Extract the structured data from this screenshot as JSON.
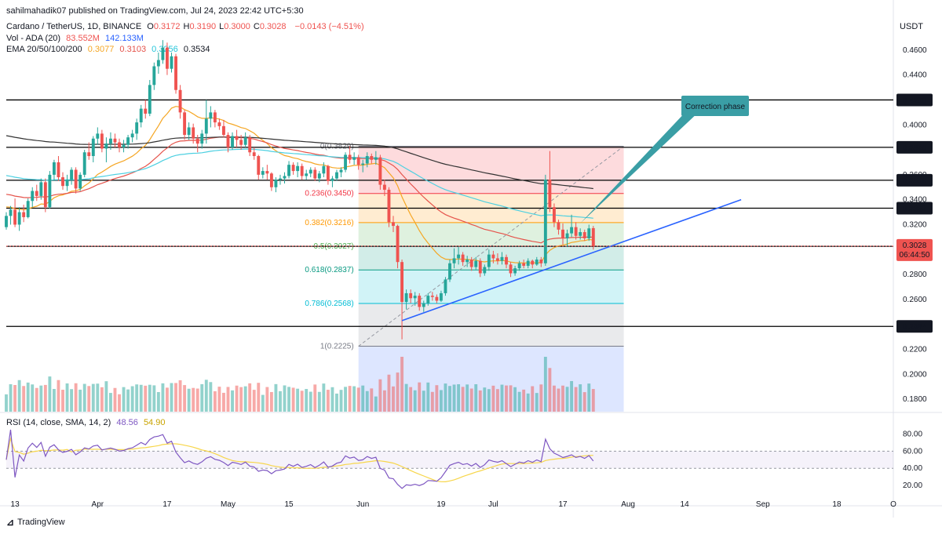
{
  "publisher": "sahilmahadik07 published on TradingView.com, Jul 24, 2023 22:42 UTC+5:30",
  "header": {
    "symbol": "Cardano / TetherUS, 1D, BINANCE",
    "ohlc": [
      {
        "k": "O",
        "v": "0.3172"
      },
      {
        "k": "H",
        "v": "0.3190"
      },
      {
        "k": "L",
        "v": "0.3000"
      },
      {
        "k": "C",
        "v": "0.3028"
      }
    ],
    "change": "−0.0143 (−4.51%)",
    "vol_label": "Vol - ADA (20)",
    "vol_values": [
      "83.552M",
      "142.133M"
    ],
    "ema_label": "EMA 20/50/100/200",
    "ema_values": [
      "0.3077",
      "0.3103",
      "0.3256",
      "0.3534"
    ],
    "rsi_label": "RSI (14, close, SMA, 14, 2)",
    "rsi_values": [
      "48.56",
      "54.90"
    ]
  },
  "currency": "USDT",
  "brand": "TradingView",
  "colors": {
    "up": "#26a69a",
    "down": "#ef5350",
    "ema20": "#f5a623",
    "ema50": "#e5534b",
    "ema100": "#4dd0e1",
    "ema200": "#333333",
    "trend": "#2962ff",
    "callout": "#3a9ea5",
    "rsi": "#7e57c2",
    "rsi_ma": "#f7d64a"
  },
  "chart_data": {
    "type": "candlestick",
    "y_ticks": [
      "0.4600",
      "0.4400",
      "0.4000",
      "0.3600",
      "0.3400",
      "0.3200",
      "0.2800",
      "0.2600",
      "0.2200",
      "0.2000",
      "0.1800"
    ],
    "ylim": [
      0.17,
      0.475
    ],
    "x_ticks": [
      "13",
      "Apr",
      "17",
      "May",
      "15",
      "Jun",
      "19",
      "Jul",
      "17",
      "Aug",
      "14",
      "Sep",
      "18",
      "O"
    ],
    "x_tick_dates": [
      "2023-03-13",
      "2023-04-01",
      "2023-04-17",
      "2023-05-01",
      "2023-05-15",
      "2023-06-01",
      "2023-06-19",
      "2023-07-01",
      "2023-07-17",
      "2023-08-01",
      "2023-08-14",
      "2023-09-01",
      "2023-09-18",
      "2023-10-01"
    ],
    "horizontal_levels": [
      {
        "value": 0.42,
        "label": "0.4200"
      },
      {
        "value": 0.382,
        "label": "0.3820"
      },
      {
        "value": 0.3556,
        "label": "0.3556"
      },
      {
        "value": 0.3332,
        "label": "0.3332"
      },
      {
        "value": 0.3026,
        "label": "0.3026"
      },
      {
        "value": 0.2384,
        "label": "0.2384"
      }
    ],
    "last_price": {
      "value": "0.3028",
      "countdown": "06:44:50"
    },
    "fib_levels": [
      {
        "ratio": "0",
        "value": 0.3829,
        "label": "0(0.3829)",
        "color": "#787b86"
      },
      {
        "ratio": "0.236",
        "value": 0.345,
        "label": "0.236(0.3450)",
        "color": "#f23645"
      },
      {
        "ratio": "0.382",
        "value": 0.3216,
        "label": "0.382(0.3216)",
        "color": "#ff9800"
      },
      {
        "ratio": "0.5",
        "value": 0.3027,
        "label": "0.5(0.3027)",
        "color": "#4caf50"
      },
      {
        "ratio": "0.618",
        "value": 0.2837,
        "label": "0.618(0.2837)",
        "color": "#089981"
      },
      {
        "ratio": "0.786",
        "value": 0.2568,
        "label": "0.786(0.2568)",
        "color": "#00bcd4"
      },
      {
        "ratio": "1",
        "value": 0.2225,
        "label": "1(0.2225)",
        "color": "#787b86"
      }
    ],
    "fib_range_dates": [
      "2023-05-31",
      "2023-07-31"
    ],
    "trendline": {
      "from": [
        "2023-06-10",
        0.243
      ],
      "to": [
        "2023-08-27",
        0.34
      ]
    },
    "callout": {
      "text": "Correction phase",
      "date": "2023-07-21",
      "value": 0.321
    },
    "candles": [
      [
        "2023-03-11",
        0.318,
        0.33,
        0.316,
        0.327
      ],
      [
        "2023-03-12",
        0.327,
        0.335,
        0.32,
        0.332
      ],
      [
        "2023-03-13",
        0.332,
        0.341,
        0.318,
        0.32
      ],
      [
        "2023-03-14",
        0.32,
        0.334,
        0.315,
        0.33
      ],
      [
        "2023-03-15",
        0.33,
        0.336,
        0.322,
        0.326
      ],
      [
        "2023-03-16",
        0.326,
        0.341,
        0.325,
        0.339
      ],
      [
        "2023-03-17",
        0.339,
        0.35,
        0.334,
        0.347
      ],
      [
        "2023-03-18",
        0.347,
        0.352,
        0.339,
        0.343
      ],
      [
        "2023-03-19",
        0.343,
        0.357,
        0.34,
        0.354
      ],
      [
        "2023-03-20",
        0.354,
        0.357,
        0.33,
        0.334
      ],
      [
        "2023-03-21",
        0.334,
        0.363,
        0.333,
        0.36
      ],
      [
        "2023-03-22",
        0.36,
        0.372,
        0.355,
        0.37
      ],
      [
        "2023-03-23",
        0.37,
        0.375,
        0.355,
        0.358
      ],
      [
        "2023-03-24",
        0.358,
        0.362,
        0.348,
        0.351
      ],
      [
        "2023-03-25",
        0.351,
        0.36,
        0.347,
        0.356
      ],
      [
        "2023-03-26",
        0.356,
        0.366,
        0.352,
        0.364
      ],
      [
        "2023-03-27",
        0.364,
        0.366,
        0.345,
        0.349
      ],
      [
        "2023-03-28",
        0.349,
        0.362,
        0.347,
        0.36
      ],
      [
        "2023-03-29",
        0.36,
        0.38,
        0.358,
        0.378
      ],
      [
        "2023-03-30",
        0.378,
        0.386,
        0.372,
        0.375
      ],
      [
        "2023-03-31",
        0.375,
        0.391,
        0.37,
        0.389
      ],
      [
        "2023-04-01",
        0.389,
        0.398,
        0.384,
        0.393
      ],
      [
        "2023-04-02",
        0.393,
        0.396,
        0.378,
        0.381
      ],
      [
        "2023-04-03",
        0.381,
        0.39,
        0.37,
        0.385
      ],
      [
        "2023-04-04",
        0.385,
        0.394,
        0.38,
        0.389
      ],
      [
        "2023-04-05",
        0.389,
        0.393,
        0.382,
        0.386
      ],
      [
        "2023-04-06",
        0.386,
        0.389,
        0.378,
        0.382
      ],
      [
        "2023-04-07",
        0.382,
        0.388,
        0.378,
        0.384
      ],
      [
        "2023-04-08",
        0.384,
        0.392,
        0.381,
        0.39
      ],
      [
        "2023-04-09",
        0.39,
        0.396,
        0.386,
        0.393
      ],
      [
        "2023-04-10",
        0.393,
        0.405,
        0.388,
        0.402
      ],
      [
        "2023-04-11",
        0.402,
        0.416,
        0.398,
        0.413
      ],
      [
        "2023-04-12",
        0.413,
        0.42,
        0.405,
        0.409
      ],
      [
        "2023-04-13",
        0.409,
        0.436,
        0.407,
        0.432
      ],
      [
        "2023-04-14",
        0.432,
        0.45,
        0.428,
        0.447
      ],
      [
        "2023-04-15",
        0.447,
        0.458,
        0.441,
        0.452
      ],
      [
        "2023-04-16",
        0.452,
        0.468,
        0.449,
        0.462
      ],
      [
        "2023-04-17",
        0.462,
        0.466,
        0.44,
        0.445
      ],
      [
        "2023-04-18",
        0.445,
        0.458,
        0.442,
        0.455
      ],
      [
        "2023-04-19",
        0.455,
        0.457,
        0.425,
        0.428
      ],
      [
        "2023-04-20",
        0.428,
        0.432,
        0.405,
        0.41
      ],
      [
        "2023-04-21",
        0.41,
        0.412,
        0.388,
        0.392
      ],
      [
        "2023-04-22",
        0.392,
        0.402,
        0.388,
        0.398
      ],
      [
        "2023-04-23",
        0.398,
        0.401,
        0.385,
        0.389
      ],
      [
        "2023-04-24",
        0.389,
        0.392,
        0.378,
        0.385
      ],
      [
        "2023-04-25",
        0.385,
        0.396,
        0.381,
        0.393
      ],
      [
        "2023-04-26",
        0.393,
        0.42,
        0.385,
        0.405
      ],
      [
        "2023-04-27",
        0.405,
        0.415,
        0.398,
        0.41
      ],
      [
        "2023-04-28",
        0.41,
        0.412,
        0.398,
        0.402
      ],
      [
        "2023-04-29",
        0.402,
        0.405,
        0.396,
        0.399
      ],
      [
        "2023-04-30",
        0.399,
        0.404,
        0.39,
        0.392
      ],
      [
        "2023-05-01",
        0.392,
        0.394,
        0.378,
        0.382
      ],
      [
        "2023-05-02",
        0.382,
        0.394,
        0.38,
        0.391
      ],
      [
        "2023-05-03",
        0.391,
        0.396,
        0.382,
        0.388
      ],
      [
        "2023-05-04",
        0.388,
        0.392,
        0.38,
        0.384
      ],
      [
        "2023-05-05",
        0.384,
        0.394,
        0.382,
        0.39
      ],
      [
        "2023-05-06",
        0.39,
        0.392,
        0.375,
        0.378
      ],
      [
        "2023-05-07",
        0.378,
        0.382,
        0.372,
        0.375
      ],
      [
        "2023-05-08",
        0.375,
        0.376,
        0.356,
        0.36
      ],
      [
        "2023-05-09",
        0.36,
        0.366,
        0.357,
        0.363
      ],
      [
        "2023-05-10",
        0.363,
        0.368,
        0.356,
        0.361
      ],
      [
        "2023-05-11",
        0.361,
        0.362,
        0.347,
        0.35
      ],
      [
        "2023-05-12",
        0.35,
        0.358,
        0.346,
        0.356
      ],
      [
        "2023-05-13",
        0.356,
        0.36,
        0.352,
        0.357
      ],
      [
        "2023-05-14",
        0.357,
        0.362,
        0.353,
        0.359
      ],
      [
        "2023-05-15",
        0.359,
        0.371,
        0.357,
        0.368
      ],
      [
        "2023-05-16",
        0.368,
        0.37,
        0.36,
        0.363
      ],
      [
        "2023-05-17",
        0.363,
        0.37,
        0.358,
        0.367
      ],
      [
        "2023-05-18",
        0.367,
        0.369,
        0.356,
        0.359
      ],
      [
        "2023-05-19",
        0.359,
        0.364,
        0.356,
        0.361
      ],
      [
        "2023-05-20",
        0.361,
        0.366,
        0.358,
        0.364
      ],
      [
        "2023-05-21",
        0.364,
        0.366,
        0.355,
        0.357
      ],
      [
        "2023-05-22",
        0.357,
        0.363,
        0.354,
        0.361
      ],
      [
        "2023-05-23",
        0.361,
        0.37,
        0.358,
        0.367
      ],
      [
        "2023-05-24",
        0.367,
        0.368,
        0.352,
        0.355
      ],
      [
        "2023-05-25",
        0.355,
        0.359,
        0.35,
        0.357
      ],
      [
        "2023-05-26",
        0.357,
        0.364,
        0.355,
        0.362
      ],
      [
        "2023-05-27",
        0.362,
        0.366,
        0.358,
        0.364
      ],
      [
        "2023-05-28",
        0.364,
        0.378,
        0.362,
        0.376
      ],
      [
        "2023-05-29",
        0.376,
        0.383,
        0.369,
        0.372
      ],
      [
        "2023-05-30",
        0.372,
        0.378,
        0.368,
        0.374
      ],
      [
        "2023-05-31",
        0.374,
        0.376,
        0.364,
        0.368
      ],
      [
        "2023-06-01",
        0.368,
        0.372,
        0.362,
        0.369
      ],
      [
        "2023-06-02",
        0.369,
        0.378,
        0.366,
        0.375
      ],
      [
        "2023-06-03",
        0.375,
        0.377,
        0.369,
        0.372
      ],
      [
        "2023-06-04",
        0.372,
        0.379,
        0.368,
        0.374
      ],
      [
        "2023-06-05",
        0.374,
        0.376,
        0.348,
        0.352
      ],
      [
        "2023-06-06",
        0.352,
        0.356,
        0.343,
        0.348
      ],
      [
        "2023-06-07",
        0.348,
        0.35,
        0.318,
        0.322
      ],
      [
        "2023-06-08",
        0.322,
        0.327,
        0.314,
        0.319
      ],
      [
        "2023-06-09",
        0.319,
        0.32,
        0.285,
        0.29
      ],
      [
        "2023-06-10",
        0.29,
        0.292,
        0.228,
        0.258
      ],
      [
        "2023-06-11",
        0.258,
        0.268,
        0.252,
        0.265
      ],
      [
        "2023-06-12",
        0.265,
        0.268,
        0.257,
        0.261
      ],
      [
        "2023-06-13",
        0.261,
        0.266,
        0.255,
        0.263
      ],
      [
        "2023-06-14",
        0.263,
        0.265,
        0.251,
        0.254
      ],
      [
        "2023-06-15",
        0.254,
        0.259,
        0.25,
        0.257
      ],
      [
        "2023-06-16",
        0.257,
        0.265,
        0.255,
        0.263
      ],
      [
        "2023-06-17",
        0.263,
        0.266,
        0.259,
        0.262
      ],
      [
        "2023-06-18",
        0.262,
        0.264,
        0.257,
        0.259
      ],
      [
        "2023-06-19",
        0.259,
        0.267,
        0.258,
        0.265
      ],
      [
        "2023-06-20",
        0.265,
        0.278,
        0.263,
        0.276
      ],
      [
        "2023-06-21",
        0.276,
        0.292,
        0.274,
        0.289
      ],
      [
        "2023-06-22",
        0.289,
        0.301,
        0.285,
        0.293
      ],
      [
        "2023-06-23",
        0.293,
        0.302,
        0.288,
        0.296
      ],
      [
        "2023-06-24",
        0.296,
        0.298,
        0.287,
        0.29
      ],
      [
        "2023-06-25",
        0.29,
        0.295,
        0.286,
        0.292
      ],
      [
        "2023-06-26",
        0.292,
        0.294,
        0.283,
        0.286
      ],
      [
        "2023-06-27",
        0.286,
        0.294,
        0.284,
        0.291
      ],
      [
        "2023-06-28",
        0.291,
        0.293,
        0.278,
        0.281
      ],
      [
        "2023-06-29",
        0.281,
        0.288,
        0.279,
        0.286
      ],
      [
        "2023-06-30",
        0.286,
        0.3,
        0.283,
        0.296
      ],
      [
        "2023-07-01",
        0.296,
        0.299,
        0.289,
        0.293
      ],
      [
        "2023-07-02",
        0.293,
        0.297,
        0.288,
        0.291
      ],
      [
        "2023-07-03",
        0.291,
        0.298,
        0.288,
        0.294
      ],
      [
        "2023-07-04",
        0.294,
        0.296,
        0.285,
        0.288
      ],
      [
        "2023-07-05",
        0.288,
        0.29,
        0.278,
        0.281
      ],
      [
        "2023-07-06",
        0.281,
        0.287,
        0.279,
        0.285
      ],
      [
        "2023-07-07",
        0.285,
        0.291,
        0.283,
        0.289
      ],
      [
        "2023-07-08",
        0.289,
        0.292,
        0.285,
        0.287
      ],
      [
        "2023-07-09",
        0.287,
        0.293,
        0.285,
        0.291
      ],
      [
        "2023-07-10",
        0.291,
        0.292,
        0.285,
        0.288
      ],
      [
        "2023-07-11",
        0.288,
        0.294,
        0.287,
        0.292
      ],
      [
        "2023-07-12",
        0.292,
        0.294,
        0.286,
        0.289
      ],
      [
        "2023-07-13",
        0.289,
        0.36,
        0.287,
        0.356
      ],
      [
        "2023-07-14",
        0.356,
        0.379,
        0.33,
        0.334
      ],
      [
        "2023-07-15",
        0.334,
        0.337,
        0.318,
        0.322
      ],
      [
        "2023-07-16",
        0.322,
        0.324,
        0.312,
        0.316
      ],
      [
        "2023-07-17",
        0.316,
        0.321,
        0.304,
        0.309
      ],
      [
        "2023-07-18",
        0.309,
        0.316,
        0.302,
        0.313
      ],
      [
        "2023-07-19",
        0.313,
        0.328,
        0.31,
        0.318
      ],
      [
        "2023-07-20",
        0.318,
        0.322,
        0.308,
        0.311
      ],
      [
        "2023-07-21",
        0.311,
        0.317,
        0.308,
        0.314
      ],
      [
        "2023-07-22",
        0.314,
        0.316,
        0.307,
        0.309
      ],
      [
        "2023-07-23",
        0.309,
        0.32,
        0.307,
        0.317
      ],
      [
        "2023-07-24",
        0.3172,
        0.319,
        0.3,
        0.3028
      ]
    ],
    "volume_ylim": [
      0,
      300
    ],
    "rsi": {
      "ylim": [
        10,
        85
      ],
      "ticks": [
        "80.00",
        "60.00",
        "40.00",
        "20.00"
      ],
      "band": [
        40,
        60
      ]
    }
  }
}
